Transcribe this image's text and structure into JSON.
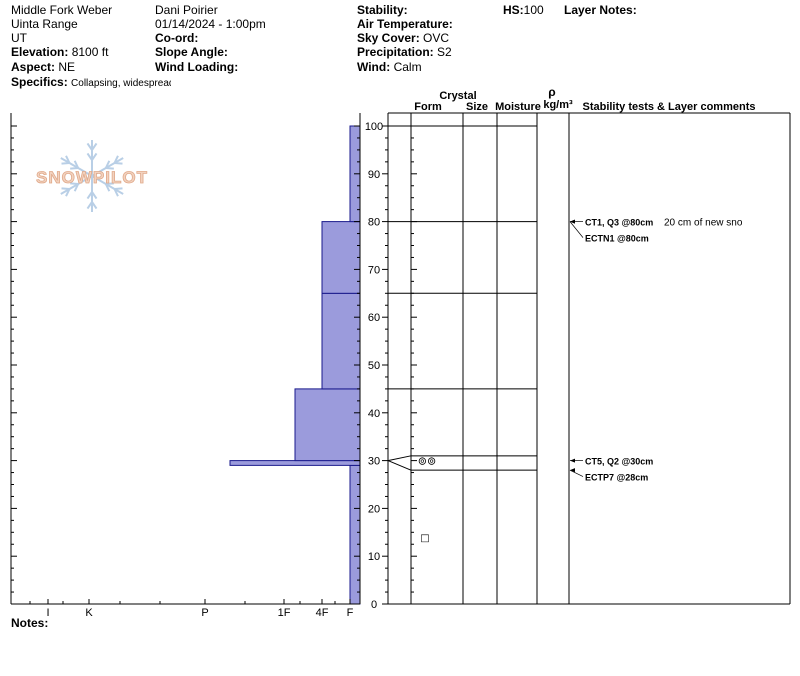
{
  "header": {
    "location": "Middle Fork Weber",
    "range": "Uinta Range",
    "state": "UT",
    "elevation_label": "Elevation:",
    "elevation_value": "8100 ft",
    "aspect_label": "Aspect:",
    "aspect_value": "NE",
    "specifics_label": "Specifics:",
    "specifics_value": "Collapsing, widespread",
    "observer": "Dani Poirier",
    "datetime": "01/14/2024 - 1:00pm",
    "coord_label": "Co-ord:",
    "slope_label": "Slope Angle:",
    "wind_loading_label": "Wind Loading:",
    "stability_label": "Stability:",
    "air_temp_label": "Air Temperature:",
    "sky_cover_label": "Sky Cover:",
    "sky_cover_value": "OVC",
    "precip_label": "Precipitation:",
    "precip_value": "S2",
    "wind_label": "Wind:",
    "wind_value": "Calm",
    "hs_label": "HS:",
    "hs_value": "100",
    "layer_notes_label": "Layer Notes:"
  },
  "logo_text": "SNOWPILOT",
  "notes_label": "Notes:",
  "columns": {
    "crystal": "Crystal",
    "form": "Form",
    "size": "Size",
    "moisture": "Moisture",
    "rho": "ρ",
    "density_unit": "kg/m³",
    "stability": "Stability tests & Layer comments"
  },
  "chart_data": {
    "type": "bar",
    "title": "",
    "y_axis": {
      "label": "",
      "range": [
        0,
        100
      ],
      "ticks": [
        0,
        10,
        20,
        30,
        40,
        50,
        60,
        70,
        80,
        90,
        100
      ]
    },
    "hardness_scale": [
      "I",
      "K",
      "P",
      "1F",
      "4F",
      "F"
    ],
    "hardness_profile": [
      {
        "from_cm": 0,
        "to_cm": 29,
        "hardness": "F"
      },
      {
        "from_cm": 29,
        "to_cm": 30,
        "hardness": "P+"
      },
      {
        "from_cm": 30,
        "to_cm": 45,
        "hardness": "1F+"
      },
      {
        "from_cm": 45,
        "to_cm": 65,
        "hardness": "4F"
      },
      {
        "from_cm": 65,
        "to_cm": 80,
        "hardness": "4F"
      },
      {
        "from_cm": 80,
        "to_cm": 100,
        "hardness": "F"
      }
    ],
    "layer_boundaries_cm": [
      100,
      80,
      65,
      45,
      31,
      28,
      0
    ],
    "crystal_symbols": [
      {
        "depth_cm": 30,
        "symbol": "surface-hoar-icon",
        "glyph": "⊚⊚"
      },
      {
        "depth_cm": 14,
        "symbol": "faceted-icon",
        "glyph": "□"
      }
    ],
    "stability_tests": [
      {
        "depth_cm": 80,
        "text": "CT1, Q3 @80cm",
        "comment": "20 cm of new sno"
      },
      {
        "depth_cm": 80,
        "text": "ECTN1 @80cm",
        "comment": ""
      },
      {
        "depth_cm": 30,
        "text": "CT5, Q2 @30cm",
        "comment": ""
      },
      {
        "depth_cm": 28,
        "text": "ECTP7 @28cm",
        "comment": ""
      }
    ],
    "colors": {
      "fill": "#9b9bdc",
      "stroke": "#1a1a8c",
      "logo": "#e8b99a",
      "snowflake": "#b9cfe6"
    }
  }
}
